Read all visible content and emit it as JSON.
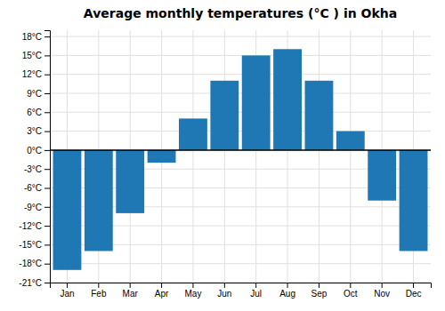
{
  "chart_data": {
    "type": "bar",
    "title": "Average monthly temperatures (°C ) in Okha",
    "categories": [
      "Jan",
      "Feb",
      "Mar",
      "Apr",
      "May",
      "Jun",
      "Jul",
      "Aug",
      "Sep",
      "Oct",
      "Nov",
      "Dec"
    ],
    "values": [
      -19,
      -16,
      -10,
      -2,
      5,
      11,
      15,
      16,
      11,
      3,
      -8,
      -16
    ],
    "ylim": [
      -21,
      19
    ],
    "yticks": [
      {
        "value": -21,
        "label": "-21°C"
      },
      {
        "value": -18,
        "label": "-18°C"
      },
      {
        "value": -15,
        "label": "-15°C"
      },
      {
        "value": -12,
        "label": "-12°C"
      },
      {
        "value": -9,
        "label": "-9°C"
      },
      {
        "value": -6,
        "label": "-6°C"
      },
      {
        "value": -3,
        "label": "-3°C"
      },
      {
        "value": 0,
        "label": "0°C"
      },
      {
        "value": 3,
        "label": "3°C"
      },
      {
        "value": 6,
        "label": "6°C"
      },
      {
        "value": 9,
        "label": "9°C"
      },
      {
        "value": 12,
        "label": "12°C"
      },
      {
        "value": 15,
        "label": "15°C"
      },
      {
        "value": 18,
        "label": "18°C"
      }
    ],
    "grid": true
  }
}
